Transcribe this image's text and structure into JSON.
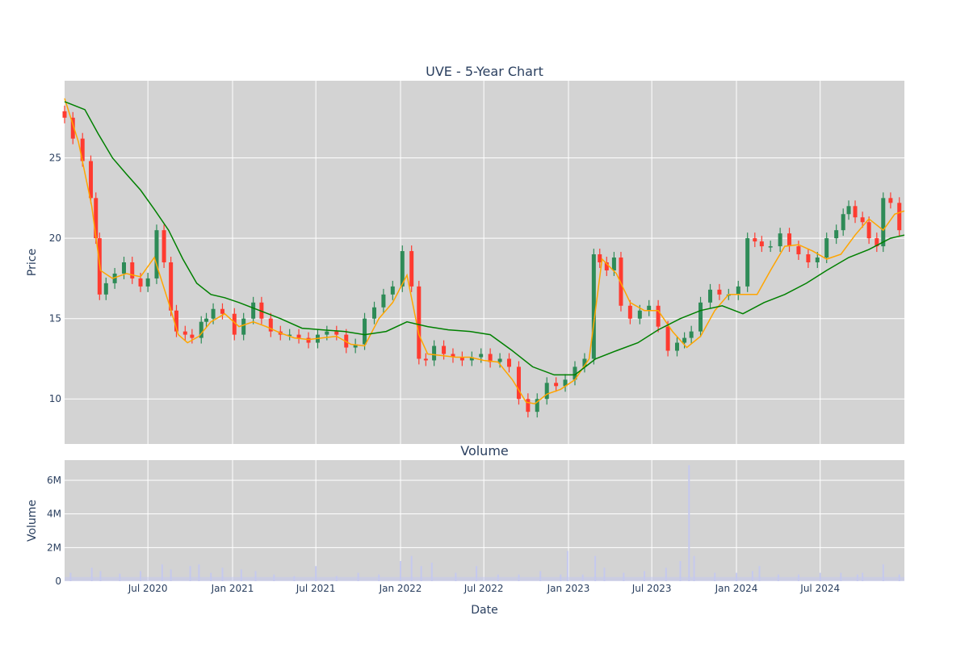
{
  "chart_data": [
    {
      "type": "candlestick",
      "title": "UVE - 5-Year Chart",
      "ylabel": "Price",
      "ylim": [
        7.2,
        29.8
      ],
      "yticks": [
        10,
        15,
        20,
        25
      ],
      "grid": true,
      "colors": {
        "up": "#2e8b57",
        "down": "#ff3b30",
        "ma_short": "#ffa500",
        "ma_long": "#008000",
        "background": "#d3d3d3"
      },
      "series": [
        {
          "type": "candlestick",
          "note": "OHLC candles (sampled approx. closes)",
          "x": [
            "2020-01-02",
            "2020-01-20",
            "2020-02-10",
            "2020-02-28",
            "2020-03-10",
            "2020-03-18",
            "2020-04-01",
            "2020-04-20",
            "2020-05-10",
            "2020-05-28",
            "2020-06-15",
            "2020-07-01",
            "2020-07-20",
            "2020-08-05",
            "2020-08-20",
            "2020-09-01",
            "2020-09-20",
            "2020-10-05",
            "2020-10-25",
            "2020-11-05",
            "2020-11-20",
            "2020-12-10",
            "2021-01-05",
            "2021-01-25",
            "2021-02-15",
            "2021-03-05",
            "2021-03-25",
            "2021-04-15",
            "2021-05-05",
            "2021-05-25",
            "2021-06-15",
            "2021-07-05",
            "2021-07-25",
            "2021-08-15",
            "2021-09-05",
            "2021-09-25",
            "2021-10-15",
            "2021-11-05",
            "2021-11-25",
            "2021-12-15",
            "2022-01-05",
            "2022-01-25",
            "2022-02-10",
            "2022-02-25",
            "2022-03-15",
            "2022-04-05",
            "2022-04-25",
            "2022-05-15",
            "2022-06-05",
            "2022-06-25",
            "2022-07-15",
            "2022-08-05",
            "2022-08-25",
            "2022-09-15",
            "2022-10-05",
            "2022-10-25",
            "2022-11-15",
            "2022-12-05",
            "2022-12-25",
            "2023-01-15",
            "2023-02-05",
            "2023-02-25",
            "2023-03-10",
            "2023-03-25",
            "2023-04-10",
            "2023-04-25",
            "2023-05-15",
            "2023-06-05",
            "2023-06-25",
            "2023-07-15",
            "2023-08-05",
            "2023-08-25",
            "2023-09-10",
            "2023-09-25",
            "2023-10-15",
            "2023-11-05",
            "2023-11-25",
            "2023-12-15",
            "2024-01-05",
            "2024-01-25",
            "2024-02-10",
            "2024-02-25",
            "2024-03-15",
            "2024-04-05",
            "2024-04-25",
            "2024-05-15",
            "2024-06-05",
            "2024-06-25",
            "2024-07-15",
            "2024-08-05",
            "2024-08-20",
            "2024-09-01",
            "2024-09-15",
            "2024-10-01",
            "2024-10-15",
            "2024-11-01",
            "2024-11-15",
            "2024-12-01",
            "2024-12-20"
          ],
          "close": [
            27.5,
            26.2,
            24.8,
            22.5,
            20.0,
            16.5,
            17.2,
            17.8,
            18.5,
            17.5,
            17.0,
            17.5,
            20.5,
            18.5,
            15.5,
            14.2,
            14.0,
            13.8,
            14.8,
            15.0,
            15.6,
            15.3,
            14.0,
            15.0,
            16.0,
            15.0,
            14.2,
            14.0,
            14.0,
            13.8,
            13.5,
            14.0,
            14.2,
            14.0,
            13.2,
            13.4,
            15.0,
            15.7,
            16.5,
            17.0,
            19.2,
            17.0,
            12.5,
            12.4,
            13.3,
            12.8,
            12.6,
            12.4,
            12.6,
            12.8,
            12.3,
            12.5,
            12.0,
            10.0,
            9.2,
            10.0,
            11.0,
            10.8,
            11.2,
            12.0,
            12.5,
            19.0,
            18.5,
            18.0,
            18.8,
            15.8,
            15.0,
            15.5,
            15.8,
            14.5,
            13.0,
            13.5,
            13.8,
            14.2,
            16.0,
            16.8,
            16.5,
            16.5,
            17.0,
            20.0,
            19.8,
            19.5,
            19.5,
            20.3,
            19.5,
            19.0,
            18.5,
            18.8,
            20.0,
            20.5,
            21.5,
            22.0,
            21.3,
            21.0,
            20.0,
            19.5,
            22.5,
            22.2,
            20.5
          ]
        },
        {
          "type": "line",
          "name": "",
          "note": "short moving average (orange)",
          "x": [
            "2020-01-02",
            "2020-02-01",
            "2020-03-01",
            "2020-03-20",
            "2020-04-15",
            "2020-05-15",
            "2020-06-15",
            "2020-07-15",
            "2020-08-15",
            "2020-09-05",
            "2020-09-25",
            "2020-10-20",
            "2020-11-15",
            "2020-12-15",
            "2021-01-15",
            "2021-02-15",
            "2021-03-15",
            "2021-04-15",
            "2021-05-15",
            "2021-06-15",
            "2021-07-15",
            "2021-08-15",
            "2021-09-15",
            "2021-10-15",
            "2021-11-15",
            "2021-12-15",
            "2022-01-15",
            "2022-02-10",
            "2022-03-01",
            "2022-04-01",
            "2022-05-01",
            "2022-06-01",
            "2022-07-01",
            "2022-08-01",
            "2022-09-01",
            "2022-10-01",
            "2022-10-20",
            "2022-11-15",
            "2022-12-15",
            "2023-01-15",
            "2023-02-15",
            "2023-03-15",
            "2023-04-15",
            "2023-05-15",
            "2023-06-15",
            "2023-07-15",
            "2023-08-15",
            "2023-09-15",
            "2023-10-15",
            "2023-11-15",
            "2023-12-15",
            "2024-01-15",
            "2024-02-15",
            "2024-03-15",
            "2024-04-15",
            "2024-05-15",
            "2024-06-15",
            "2024-07-15",
            "2024-08-15",
            "2024-09-15",
            "2024-10-15",
            "2024-11-15",
            "2024-12-10",
            "2024-12-31"
          ],
          "y": [
            28.7,
            26.0,
            22.0,
            18.0,
            17.5,
            17.8,
            17.6,
            18.8,
            16.0,
            14.0,
            13.5,
            13.9,
            14.8,
            15.3,
            14.5,
            14.8,
            14.5,
            14.1,
            13.8,
            13.7,
            13.8,
            13.9,
            13.4,
            13.3,
            15.0,
            16.0,
            17.7,
            14.0,
            12.8,
            12.7,
            12.6,
            12.6,
            12.4,
            12.3,
            11.2,
            9.8,
            9.7,
            10.3,
            10.6,
            11.2,
            12.5,
            18.7,
            17.8,
            16.0,
            15.5,
            15.5,
            14.2,
            13.2,
            13.9,
            15.5,
            16.5,
            16.5,
            16.5,
            18.0,
            19.5,
            19.6,
            19.2,
            18.7,
            19.0,
            20.2,
            21.2,
            20.5,
            21.5,
            21.7
          ]
        },
        {
          "type": "line",
          "name": "",
          "note": "long moving average (green)",
          "x": [
            "2020-01-02",
            "2020-02-15",
            "2020-03-15",
            "2020-04-15",
            "2020-05-15",
            "2020-06-15",
            "2020-07-15",
            "2020-08-15",
            "2020-09-15",
            "2020-10-15",
            "2020-11-15",
            "2020-12-15",
            "2021-01-15",
            "2021-03-01",
            "2021-04-15",
            "2021-06-01",
            "2021-07-15",
            "2021-09-01",
            "2021-10-15",
            "2021-12-01",
            "2022-01-15",
            "2022-03-01",
            "2022-04-15",
            "2022-06-01",
            "2022-07-15",
            "2022-09-01",
            "2022-10-15",
            "2022-12-01",
            "2023-01-15",
            "2023-03-01",
            "2023-04-15",
            "2023-06-01",
            "2023-07-15",
            "2023-09-01",
            "2023-10-15",
            "2023-12-01",
            "2024-01-15",
            "2024-03-01",
            "2024-04-15",
            "2024-06-01",
            "2024-07-15",
            "2024-09-01",
            "2024-10-15",
            "2024-12-01",
            "2024-12-31"
          ],
          "y": [
            28.5,
            28.0,
            26.5,
            25.0,
            24.0,
            23.0,
            21.8,
            20.5,
            18.7,
            17.2,
            16.5,
            16.3,
            16.0,
            15.5,
            15.0,
            14.4,
            14.3,
            14.2,
            14.0,
            14.2,
            14.8,
            14.5,
            14.3,
            14.2,
            14.0,
            13.0,
            12.0,
            11.5,
            11.5,
            12.5,
            13.0,
            13.5,
            14.3,
            15.0,
            15.5,
            15.8,
            15.3,
            16.0,
            16.5,
            17.2,
            18.0,
            18.8,
            19.3,
            20.0,
            20.2
          ]
        }
      ]
    },
    {
      "type": "bar",
      "title": "Volume",
      "xlabel": "Date",
      "ylabel": "Volume",
      "ylim": [
        0,
        7200000
      ],
      "yticks": [
        0,
        2000000,
        4000000,
        6000000
      ],
      "ytick_labels": [
        "0",
        "2M",
        "4M",
        "6M"
      ],
      "grid": true,
      "colors": {
        "bar": "#c5c9ee",
        "background": "#d3d3d3"
      },
      "x": [
        "2020-01-15",
        "2020-03-01",
        "2020-03-20",
        "2020-05-01",
        "2020-06-15",
        "2020-08-01",
        "2020-08-20",
        "2020-10-01",
        "2020-10-20",
        "2020-11-15",
        "2020-12-10",
        "2021-01-20",
        "2021-02-20",
        "2021-04-01",
        "2021-05-15",
        "2021-07-01",
        "2021-08-15",
        "2021-10-01",
        "2021-11-15",
        "2022-01-01",
        "2022-01-25",
        "2022-02-15",
        "2022-03-10",
        "2022-05-01",
        "2022-06-15",
        "2022-08-01",
        "2022-09-15",
        "2022-11-01",
        "2022-12-15",
        "2022-12-30",
        "2023-02-01",
        "2023-02-28",
        "2023-03-20",
        "2023-05-01",
        "2023-06-15",
        "2023-08-01",
        "2023-09-01",
        "2023-09-20",
        "2023-10-01",
        "2023-11-15",
        "2024-01-01",
        "2024-02-05",
        "2024-02-20",
        "2024-04-01",
        "2024-05-15",
        "2024-07-01",
        "2024-08-15",
        "2024-09-20",
        "2024-10-01",
        "2024-11-15",
        "2024-12-20"
      ],
      "values": [
        500000,
        800000,
        600000,
        450000,
        600000,
        1000000,
        700000,
        900000,
        1000000,
        500000,
        800000,
        700000,
        600000,
        400000,
        300000,
        900000,
        300000,
        500000,
        400000,
        1200000,
        1500000,
        900000,
        1100000,
        500000,
        900000,
        400000,
        400000,
        600000,
        400000,
        1800000,
        400000,
        1500000,
        800000,
        500000,
        600000,
        800000,
        1200000,
        6900000,
        1500000,
        500000,
        500000,
        600000,
        900000,
        400000,
        400000,
        500000,
        500000,
        400000,
        500000,
        1000000,
        400000
      ],
      "xticks": [
        "2020-07-01",
        "2021-01-01",
        "2021-07-01",
        "2022-01-01",
        "2022-07-01",
        "2023-01-01",
        "2023-07-01",
        "2024-01-01",
        "2024-07-01"
      ],
      "xtick_labels": [
        "Jul 2020",
        "Jan 2021",
        "Jul 2021",
        "Jan 2022",
        "Jul 2022",
        "Jan 2023",
        "Jul 2023",
        "Jan 2024",
        "Jul 2024"
      ],
      "xlim": [
        "2020-01-02",
        "2024-12-31"
      ]
    }
  ]
}
